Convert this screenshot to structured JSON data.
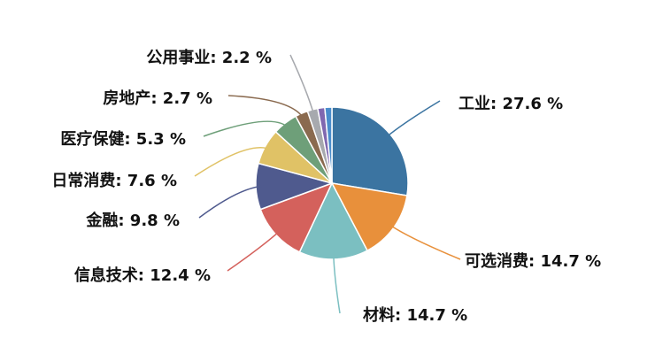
{
  "chart_data": {
    "type": "pie",
    "values": [
      27.6,
      14.7,
      14.7,
      12.4,
      9.8,
      7.6,
      5.3,
      2.7,
      2.2,
      1.5,
      1.5
    ],
    "value_labels": [
      "工业: 27.6 %",
      "可选消费: 14.7 %",
      "材料: 14.7 %",
      "信息技术: 12.4 %",
      "金融: 9.8 %",
      "日常消费: 7.6 %",
      "医疗保健: 5.3 %",
      "房地产: 2.7 %",
      "公用事业: 2.2 %",
      null,
      null
    ],
    "colors": [
      "#3b74a1",
      "#e8903b",
      "#7bbfc1",
      "#d4615c",
      "#4f5a8e",
      "#e0c266",
      "#6e9f79",
      "#8a6a4f",
      "#a7a9ae",
      "#8068b0",
      "#4a8dcc"
    ]
  }
}
